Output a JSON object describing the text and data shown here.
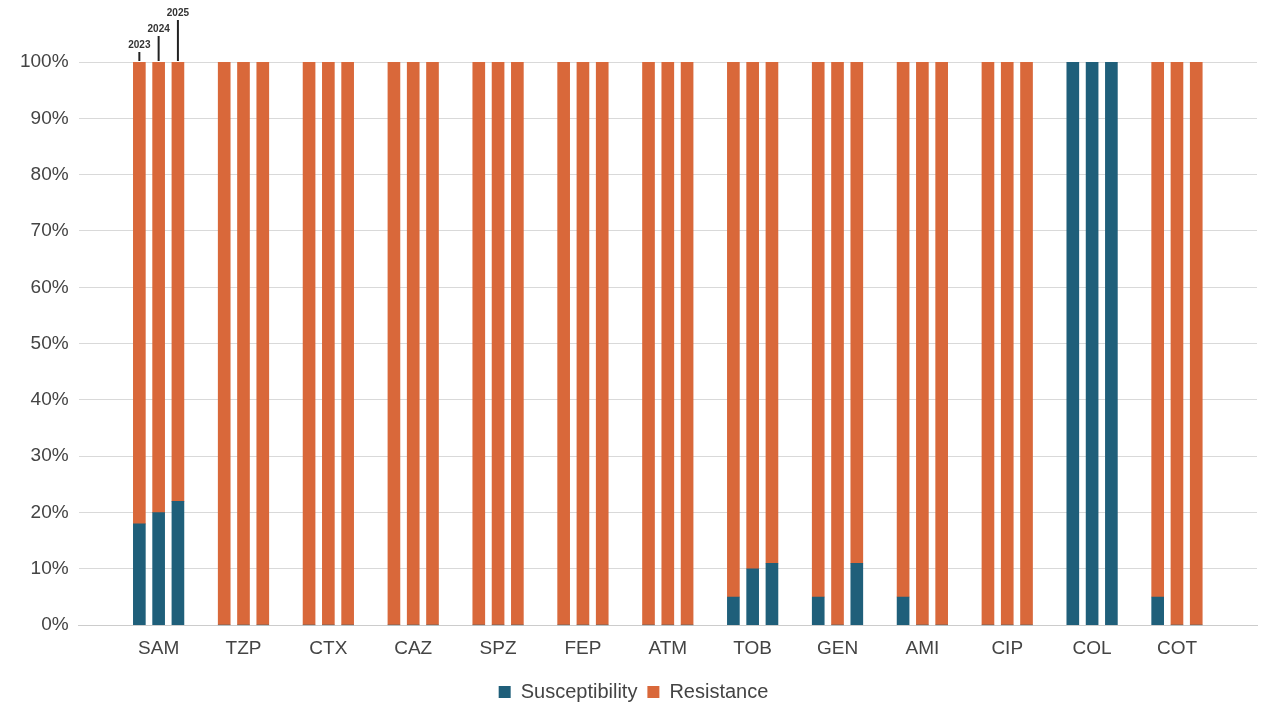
{
  "chart_data": {
    "type": "bar",
    "stacked": true,
    "categories": [
      null,
      "SAM",
      null,
      null,
      "TZP",
      null,
      null,
      "CTX",
      null,
      null,
      "CAZ",
      null,
      null,
      "SPZ",
      null,
      null,
      "FEP",
      null,
      null,
      "ATM",
      null,
      null,
      "TOB",
      null,
      null,
      "GEN",
      null,
      null,
      "AMI",
      null,
      null,
      "CIP",
      null,
      null,
      "COL",
      null,
      null,
      "COT",
      null
    ],
    "series": [
      {
        "name": "Susceptibility",
        "color": "#1f5f7a",
        "values": [
          18,
          20,
          22,
          0,
          0,
          0,
          0,
          0,
          0,
          0,
          0,
          0,
          0,
          0,
          0,
          0,
          0,
          0,
          0,
          0,
          0,
          5,
          10,
          11,
          5,
          0,
          11,
          5,
          0,
          0,
          0,
          0,
          0,
          100,
          100,
          100,
          5,
          0,
          0
        ]
      },
      {
        "name": "Resistance",
        "color": "#d9683a",
        "values": [
          82,
          80,
          78,
          100,
          100,
          100,
          100,
          100,
          100,
          100,
          100,
          100,
          100,
          100,
          100,
          100,
          100,
          100,
          100,
          100,
          100,
          95,
          90,
          89,
          95,
          100,
          89,
          95,
          100,
          100,
          100,
          100,
          100,
          0,
          0,
          0,
          95,
          100,
          100
        ]
      }
    ],
    "ylim": [
      0,
      100
    ],
    "yticks": [
      {
        "value": 0,
        "label": "0%"
      },
      {
        "value": 10,
        "label": "10%"
      },
      {
        "value": 20,
        "label": "20%"
      },
      {
        "value": 30,
        "label": "30%"
      },
      {
        "value": 40,
        "label": "40%"
      },
      {
        "value": 50,
        "label": "50%"
      },
      {
        "value": 60,
        "label": "60%"
      },
      {
        "value": 70,
        "label": "70%"
      },
      {
        "value": 80,
        "label": "80%"
      },
      {
        "value": 90,
        "label": "90%"
      },
      {
        "value": 100,
        "label": "100%"
      }
    ],
    "grid": "y",
    "legend": "bottom",
    "annotations": [
      "2023",
      "2024",
      "2025"
    ]
  }
}
